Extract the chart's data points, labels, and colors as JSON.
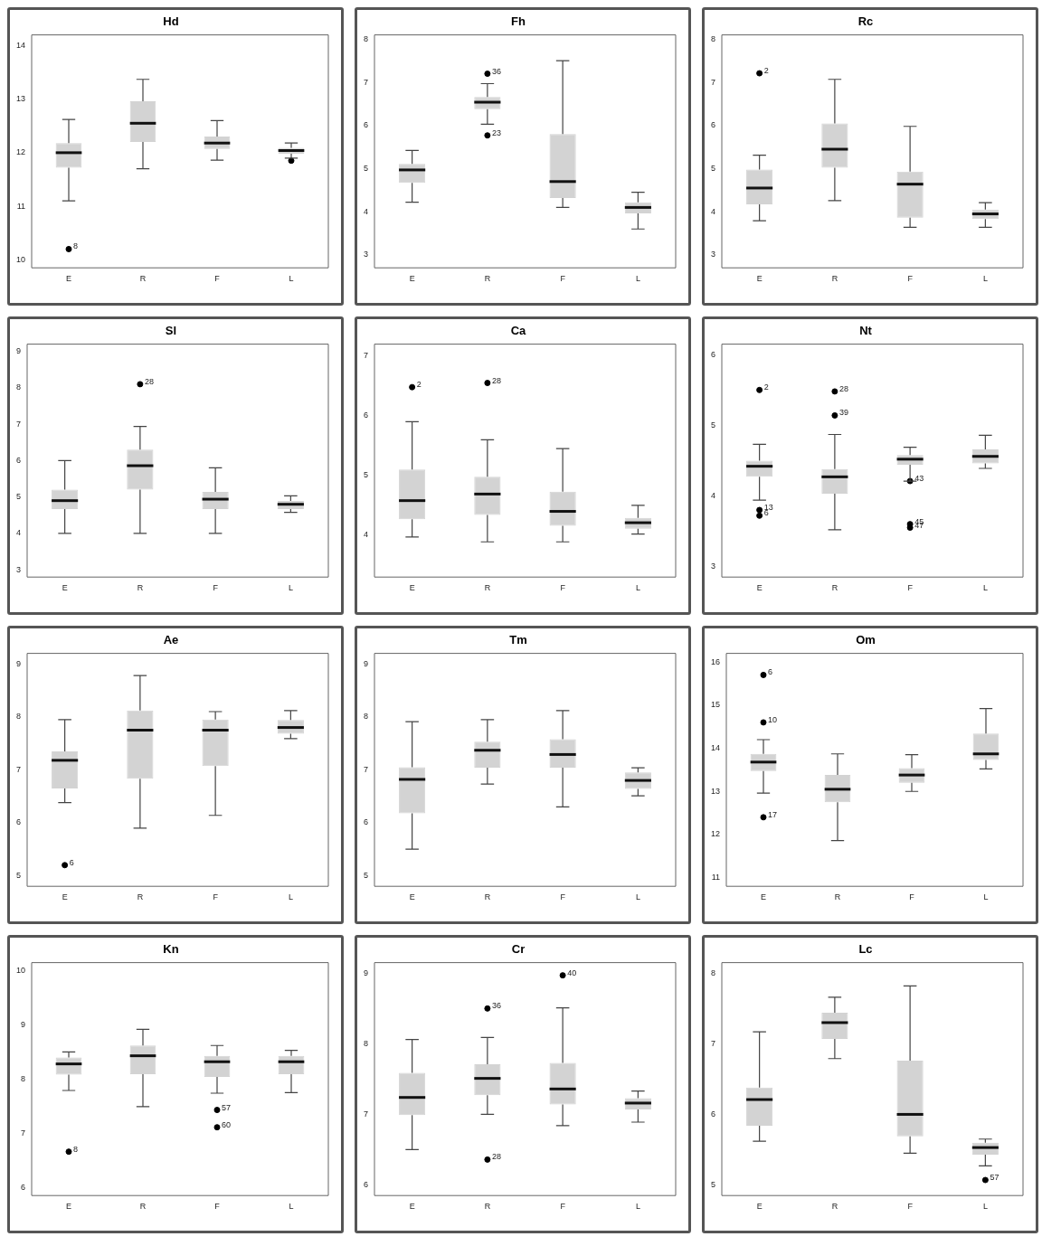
{
  "chart_data": [
    {
      "type": "box",
      "title": "Hd",
      "categories": [
        "E",
        "R",
        "F",
        "L"
      ],
      "ylim": [
        9.85,
        14.2
      ],
      "yticks": [
        10,
        11,
        12,
        13,
        14
      ],
      "color": "#d3d3d3",
      "boxes": [
        {
          "low": 11.1,
          "q1": 11.72,
          "median": 12.0,
          "q3": 12.18,
          "high": 12.62,
          "outliers": [
            10.2
          ]
        },
        {
          "low": 11.7,
          "q1": 12.2,
          "median": 12.55,
          "q3": 12.96,
          "high": 13.37
        },
        {
          "low": 11.86,
          "q1": 12.07,
          "median": 12.18,
          "q3": 12.3,
          "high": 12.6
        },
        {
          "low": 11.9,
          "q1": 11.98,
          "median": 12.04,
          "q3": 12.09,
          "high": 12.18,
          "outliers": [
            11.85
          ]
        }
      ],
      "annotations": [
        "8"
      ]
    },
    {
      "type": "box",
      "title": "Fh",
      "categories": [
        "E",
        "R",
        "F",
        "L"
      ],
      "ylim": [
        2.7,
        8.1
      ],
      "yticks": [
        3,
        4,
        5,
        6,
        7,
        8
      ],
      "color": "#d3d3d3",
      "boxes": [
        {
          "low": 4.22,
          "q1": 4.67,
          "median": 4.97,
          "q3": 5.11,
          "high": 5.42
        },
        {
          "low": 6.03,
          "q1": 6.38,
          "median": 6.54,
          "q3": 6.66,
          "high": 6.97,
          "outliers": [
            7.2,
            5.77
          ]
        },
        {
          "low": 4.1,
          "q1": 4.32,
          "median": 4.7,
          "q3": 5.8,
          "high": 7.5
        },
        {
          "low": 3.6,
          "q1": 3.96,
          "median": 4.1,
          "q3": 4.22,
          "high": 4.45
        }
      ],
      "annotations": [
        "36",
        "23"
      ]
    },
    {
      "type": "box",
      "title": "Rc",
      "categories": [
        "E",
        "R",
        "F",
        "L"
      ],
      "ylim": [
        2.7,
        8.1
      ],
      "yticks": [
        3,
        4,
        5,
        6,
        7,
        8
      ],
      "color": "#d3d3d3",
      "boxes": [
        {
          "low": 3.79,
          "q1": 4.17,
          "median": 4.55,
          "q3": 4.98,
          "high": 5.31,
          "outliers": [
            7.21
          ]
        },
        {
          "low": 4.26,
          "q1": 5.02,
          "median": 5.45,
          "q3": 6.05,
          "high": 7.07
        },
        {
          "low": 3.64,
          "q1": 3.86,
          "median": 4.64,
          "q3": 4.93,
          "high": 5.98
        },
        {
          "low": 3.64,
          "q1": 3.83,
          "median": 3.95,
          "q3": 4.05,
          "high": 4.21
        }
      ],
      "annotations": [
        "2"
      ]
    },
    {
      "type": "box",
      "title": "Sl",
      "categories": [
        "E",
        "R",
        "F",
        "L"
      ],
      "ylim": [
        2.8,
        9.2
      ],
      "yticks": [
        3,
        4,
        5,
        6,
        7,
        8,
        9
      ],
      "color": "#d3d3d3",
      "boxes": [
        {
          "low": 4.0,
          "q1": 4.67,
          "median": 4.9,
          "q3": 5.2,
          "high": 6.0
        },
        {
          "low": 4.0,
          "q1": 5.2,
          "median": 5.86,
          "q3": 6.3,
          "high": 6.94,
          "outliers": [
            8.1
          ]
        },
        {
          "low": 4.0,
          "q1": 4.67,
          "median": 4.94,
          "q3": 5.14,
          "high": 5.8
        },
        {
          "low": 4.58,
          "q1": 4.67,
          "median": 4.8,
          "q3": 4.89,
          "high": 5.03
        }
      ],
      "annotations": [
        "28"
      ]
    },
    {
      "type": "box",
      "title": "Ca",
      "categories": [
        "E",
        "R",
        "F",
        "L"
      ],
      "ylim": [
        3.3,
        7.2
      ],
      "yticks": [
        4,
        5,
        6,
        7
      ],
      "color": "#d3d3d3",
      "boxes": [
        {
          "low": 3.97,
          "q1": 4.27,
          "median": 4.58,
          "q3": 5.1,
          "high": 5.9,
          "outliers": [
            6.48
          ]
        },
        {
          "low": 3.89,
          "q1": 4.34,
          "median": 4.69,
          "q3": 4.98,
          "high": 5.6,
          "outliers": [
            6.55
          ]
        },
        {
          "low": 3.89,
          "q1": 4.16,
          "median": 4.4,
          "q3": 4.73,
          "high": 5.45
        },
        {
          "low": 4.02,
          "q1": 4.11,
          "median": 4.21,
          "q3": 4.29,
          "high": 4.5
        }
      ],
      "annotations": [
        "2",
        "28"
      ]
    },
    {
      "type": "box",
      "title": "Nt",
      "categories": [
        "E",
        "R",
        "F",
        "L"
      ],
      "ylim": [
        2.85,
        6.15
      ],
      "yticks": [
        3,
        4,
        5,
        6
      ],
      "color": "#d3d3d3",
      "boxes": [
        {
          "low": 3.94,
          "q1": 4.27,
          "median": 4.42,
          "q3": 4.5,
          "high": 4.73,
          "outliers": [
            5.5,
            3.8,
            3.72
          ]
        },
        {
          "low": 3.52,
          "q1": 4.03,
          "median": 4.27,
          "q3": 4.38,
          "high": 4.87,
          "outliers": [
            5.48,
            5.14
          ]
        },
        {
          "low": 4.21,
          "q1": 4.44,
          "median": 4.52,
          "q3": 4.58,
          "high": 4.69,
          "outliers": [
            4.21,
            3.6,
            3.55
          ]
        },
        {
          "low": 4.39,
          "q1": 4.46,
          "median": 4.56,
          "q3": 4.66,
          "high": 4.86
        }
      ],
      "annotations": [
        "2",
        "13",
        "6",
        "28",
        "39",
        "43",
        "45",
        "47"
      ]
    },
    {
      "type": "box",
      "title": "Ae",
      "categories": [
        "E",
        "R",
        "F",
        "L"
      ],
      "ylim": [
        4.8,
        9.2
      ],
      "yticks": [
        5,
        6,
        7,
        8,
        9
      ],
      "color": "#d3d3d3",
      "boxes": [
        {
          "low": 6.38,
          "q1": 6.65,
          "median": 7.18,
          "q3": 7.35,
          "high": 7.95,
          "outliers": [
            5.2
          ]
        },
        {
          "low": 5.9,
          "q1": 6.83,
          "median": 7.75,
          "q3": 8.12,
          "high": 8.78
        },
        {
          "low": 6.14,
          "q1": 7.07,
          "median": 7.75,
          "q3": 7.95,
          "high": 8.1
        },
        {
          "low": 7.59,
          "q1": 7.68,
          "median": 7.8,
          "q3": 7.94,
          "high": 8.12
        }
      ],
      "annotations": [
        "6"
      ]
    },
    {
      "type": "box",
      "title": "Tm",
      "categories": [
        "E",
        "R",
        "F",
        "L"
      ],
      "ylim": [
        4.8,
        9.2
      ],
      "yticks": [
        5,
        6,
        7,
        8,
        9
      ],
      "color": "#d3d3d3",
      "boxes": [
        {
          "low": 5.5,
          "q1": 6.18,
          "median": 6.82,
          "q3": 7.05,
          "high": 7.91
        },
        {
          "low": 6.73,
          "q1": 7.04,
          "median": 7.37,
          "q3": 7.53,
          "high": 7.95
        },
        {
          "low": 6.3,
          "q1": 7.04,
          "median": 7.29,
          "q3": 7.58,
          "high": 8.12
        },
        {
          "low": 6.51,
          "q1": 6.64,
          "median": 6.8,
          "q3": 6.95,
          "high": 7.04
        }
      ]
    },
    {
      "type": "box",
      "title": "Om",
      "categories": [
        "E",
        "R",
        "F",
        "L"
      ],
      "ylim": [
        10.8,
        16.2
      ],
      "yticks": [
        11,
        12,
        13,
        14,
        15,
        16
      ],
      "color": "#d3d3d3",
      "boxes": [
        {
          "low": 12.96,
          "q1": 13.47,
          "median": 13.68,
          "q3": 13.87,
          "high": 14.2,
          "outliers": [
            15.7,
            14.6,
            12.4
          ]
        },
        {
          "low": 11.86,
          "q1": 12.75,
          "median": 13.05,
          "q3": 13.38,
          "high": 13.87
        },
        {
          "low": 13.0,
          "q1": 13.2,
          "median": 13.38,
          "q3": 13.54,
          "high": 13.85
        },
        {
          "low": 13.52,
          "q1": 13.73,
          "median": 13.87,
          "q3": 14.34,
          "high": 14.92
        }
      ],
      "annotations": [
        "6",
        "10",
        "17"
      ]
    },
    {
      "type": "box",
      "title": "Kn",
      "categories": [
        "E",
        "R",
        "F",
        "L"
      ],
      "ylim": [
        5.85,
        10.15
      ],
      "yticks": [
        6,
        7,
        8,
        9,
        10
      ],
      "color": "#d3d3d3",
      "boxes": [
        {
          "low": 7.79,
          "q1": 8.08,
          "median": 8.28,
          "q3": 8.4,
          "high": 8.5,
          "outliers": [
            6.66
          ]
        },
        {
          "low": 7.49,
          "q1": 8.09,
          "median": 8.43,
          "q3": 8.62,
          "high": 8.92
        },
        {
          "low": 7.74,
          "q1": 8.04,
          "median": 8.32,
          "q3": 8.43,
          "high": 8.62,
          "outliers": [
            7.43,
            7.11
          ]
        },
        {
          "low": 7.75,
          "q1": 8.09,
          "median": 8.32,
          "q3": 8.43,
          "high": 8.53
        }
      ],
      "annotations": [
        "8",
        "57",
        "60"
      ]
    },
    {
      "type": "box",
      "title": "Cr",
      "categories": [
        "E",
        "R",
        "F",
        "L"
      ],
      "ylim": [
        5.85,
        9.15
      ],
      "yticks": [
        6,
        7,
        8,
        9
      ],
      "color": "#d3d3d3",
      "boxes": [
        {
          "low": 6.5,
          "q1": 6.99,
          "median": 7.24,
          "q3": 7.59,
          "high": 8.06
        },
        {
          "low": 7.0,
          "q1": 7.27,
          "median": 7.51,
          "q3": 7.71,
          "high": 8.09,
          "outliers": [
            8.5,
            6.36
          ]
        },
        {
          "low": 6.84,
          "q1": 7.14,
          "median": 7.36,
          "q3": 7.73,
          "high": 8.51,
          "outliers": [
            8.97
          ]
        },
        {
          "low": 6.89,
          "q1": 7.07,
          "median": 7.16,
          "q3": 7.23,
          "high": 7.33
        }
      ],
      "annotations": [
        "36",
        "28",
        "40"
      ]
    },
    {
      "type": "box",
      "title": "Lc",
      "categories": [
        "E",
        "R",
        "F",
        "L"
      ],
      "ylim": [
        4.85,
        8.15
      ],
      "yticks": [
        5,
        6,
        7,
        8
      ],
      "color": "#d3d3d3",
      "boxes": [
        {
          "low": 5.62,
          "q1": 5.84,
          "median": 6.21,
          "q3": 6.38,
          "high": 7.17
        },
        {
          "low": 6.79,
          "q1": 7.07,
          "median": 7.3,
          "q3": 7.44,
          "high": 7.66
        },
        {
          "low": 5.45,
          "q1": 5.69,
          "median": 6.0,
          "q3": 6.76,
          "high": 7.82
        },
        {
          "low": 5.27,
          "q1": 5.43,
          "median": 5.53,
          "q3": 5.6,
          "high": 5.65,
          "outliers": [
            5.07
          ]
        }
      ],
      "annotations": [
        "57"
      ]
    }
  ]
}
